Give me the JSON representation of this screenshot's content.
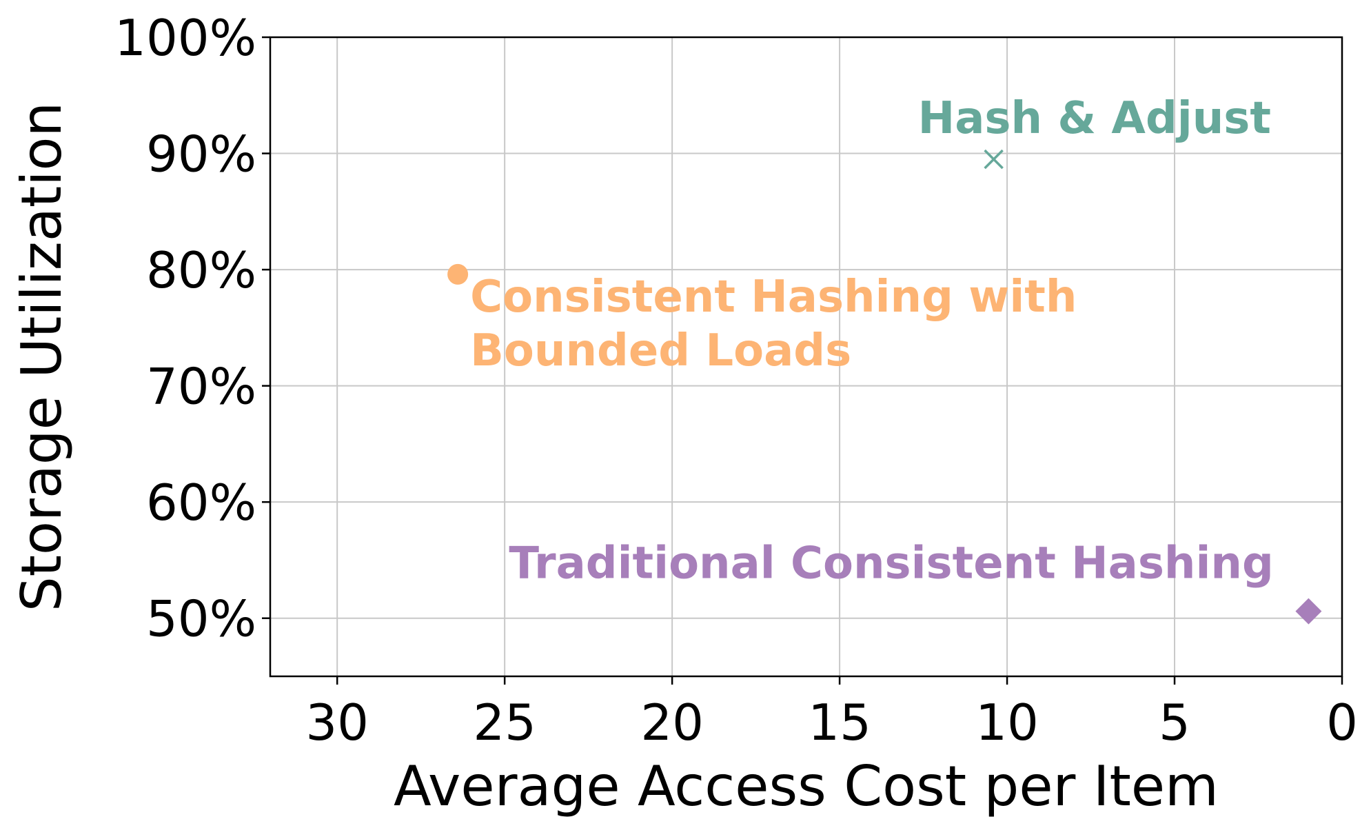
{
  "chart_data": {
    "type": "scatter",
    "title": "",
    "xlabel": "Average Access Cost per Item",
    "ylabel": "Storage Utilization",
    "xlim": [
      32,
      0
    ],
    "ylim": [
      45,
      100
    ],
    "x_reversed": true,
    "xticks": [
      30,
      25,
      20,
      15,
      10,
      5,
      0
    ],
    "xtick_labels": [
      "30",
      "25",
      "20",
      "15",
      "10",
      "5",
      "0"
    ],
    "yticks": [
      50,
      60,
      70,
      80,
      90,
      100
    ],
    "ytick_labels": [
      "50%",
      "60%",
      "70%",
      "80%",
      "90%",
      "100%"
    ],
    "grid": true,
    "legend": "none",
    "points": [
      {
        "label_lines": [
          "Hash & Adjust"
        ],
        "x": 10.4,
        "y": 89.5,
        "marker": "x",
        "color": "#66a89a"
      },
      {
        "label_lines": [
          "Consistent Hashing with",
          "Bounded Loads"
        ],
        "x": 26.4,
        "y": 79.6,
        "marker": "circle",
        "color": "#fdb474"
      },
      {
        "label_lines": [
          "Traditional Consistent Hashing"
        ],
        "x": 1.0,
        "y": 50.6,
        "marker": "diamond",
        "color": "#a77fba"
      }
    ]
  }
}
